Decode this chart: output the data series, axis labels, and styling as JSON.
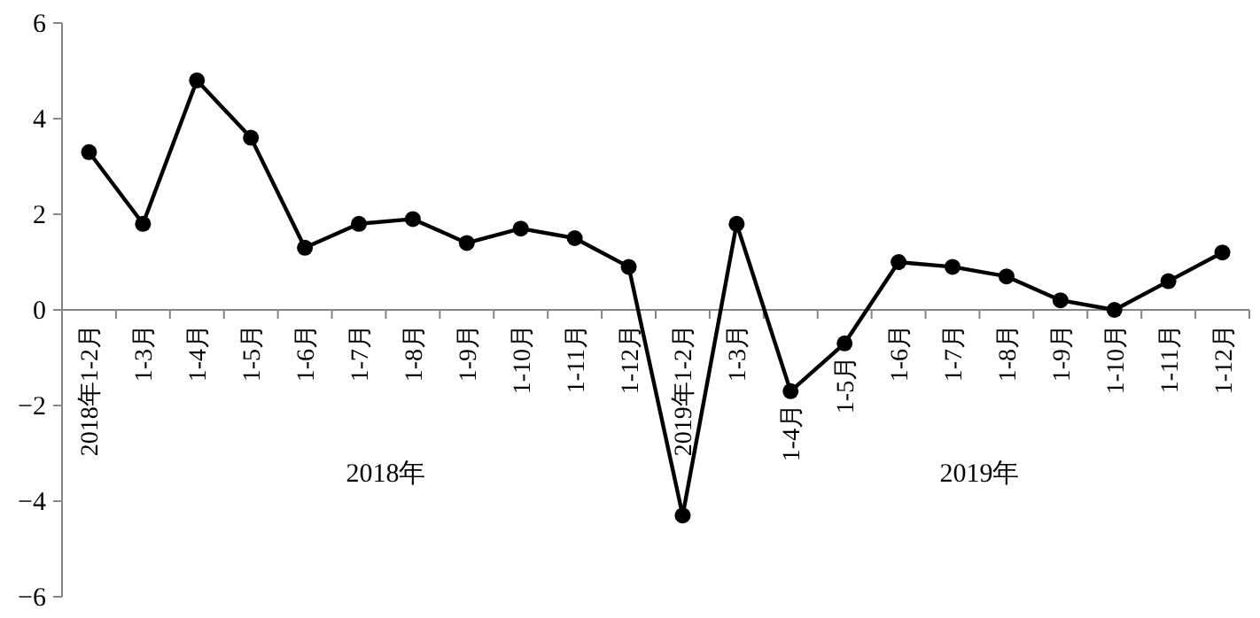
{
  "chart_data": {
    "type": "line",
    "categories": [
      "2018年1-2月",
      "1-3月",
      "1-4月",
      "1-5月",
      "1-6月",
      "1-7月",
      "1-8月",
      "1-9月",
      "1-10月",
      "1-11月",
      "1-12月",
      "2019年1-2月",
      "1-3月",
      "1-4月",
      "1-5月",
      "1-6月",
      "1-7月",
      "1-8月",
      "1-9月",
      "1-10月",
      "1-11月",
      "1-12月"
    ],
    "series": [
      {
        "color": "#000000",
        "values": [
          3.3,
          1.8,
          4.8,
          3.6,
          1.3,
          1.8,
          1.9,
          1.4,
          1.7,
          1.5,
          0.9,
          -4.3,
          1.8,
          -1.7,
          -0.7,
          1.0,
          0.9,
          0.7,
          0.2,
          0.0,
          0.6,
          1.2
        ]
      }
    ],
    "ylim": [
      -6,
      6
    ],
    "yticks": [
      -6,
      -4,
      -2,
      0,
      2,
      4,
      6
    ],
    "marker": "circle",
    "line_style": "solid",
    "grid": false,
    "annotations": [
      "2018年",
      "2019年"
    ]
  }
}
